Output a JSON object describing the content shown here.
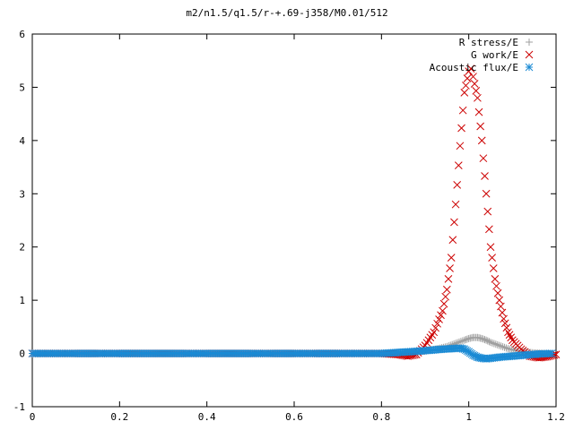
{
  "chart_data": {
    "type": "scatter",
    "title": "m2/n1.5/q1.5/r-+.69-j358/M0.01/512",
    "xlabel": "",
    "ylabel": "",
    "xlim": [
      0,
      1.2
    ],
    "ylim": [
      -1,
      6
    ],
    "x_ticks": [
      "0",
      "0.2",
      "0.4",
      "0.6",
      "0.8",
      "1",
      "1.2"
    ],
    "y_ticks": [
      "-1",
      "0",
      "1",
      "2",
      "3",
      "4",
      "5",
      "6"
    ],
    "grid": false,
    "legend_position": "top-right",
    "series": [
      {
        "name": "R stress/E",
        "marker": "plus",
        "color": "#a0a0a0",
        "x": [
          0.0,
          0.05,
          0.1,
          0.15,
          0.2,
          0.25,
          0.3,
          0.35,
          0.4,
          0.45,
          0.5,
          0.55,
          0.6,
          0.65,
          0.7,
          0.75,
          0.8,
          0.84,
          0.87,
          0.9,
          0.93,
          0.95,
          0.97,
          0.99,
          1.0,
          1.01,
          1.02,
          1.03,
          1.04,
          1.05,
          1.07,
          1.09,
          1.11,
          1.13,
          1.15,
          1.17,
          1.19
        ],
        "y": [
          0.0,
          0.0,
          0.0,
          0.0,
          0.0,
          0.0,
          0.0,
          0.0,
          0.0,
          0.0,
          0.0,
          0.0,
          0.0,
          0.0,
          0.0,
          0.0,
          0.0,
          0.01,
          0.02,
          0.05,
          0.09,
          0.13,
          0.19,
          0.25,
          0.28,
          0.3,
          0.3,
          0.28,
          0.25,
          0.21,
          0.15,
          0.09,
          0.05,
          0.03,
          0.01,
          0.0,
          0.0
        ]
      },
      {
        "name": "G work/E",
        "marker": "cross",
        "color": "#cc0000",
        "x": [
          0.0,
          0.05,
          0.1,
          0.15,
          0.2,
          0.25,
          0.3,
          0.35,
          0.4,
          0.45,
          0.5,
          0.55,
          0.6,
          0.65,
          0.7,
          0.75,
          0.8,
          0.84,
          0.86,
          0.88,
          0.9,
          0.92,
          0.94,
          0.95,
          0.96,
          0.97,
          0.98,
          0.99,
          1.0,
          1.005,
          1.01,
          1.02,
          1.03,
          1.04,
          1.05,
          1.06,
          1.07,
          1.08,
          1.09,
          1.1,
          1.12,
          1.14,
          1.16,
          1.18,
          1.2
        ],
        "y": [
          0.0,
          0.0,
          0.0,
          0.0,
          0.0,
          0.0,
          0.0,
          0.0,
          0.0,
          0.0,
          0.0,
          0.0,
          0.0,
          0.0,
          0.0,
          0.0,
          0.0,
          -0.02,
          -0.05,
          -0.02,
          0.15,
          0.4,
          0.8,
          1.2,
          1.8,
          2.8,
          3.9,
          4.9,
          5.3,
          5.35,
          5.2,
          4.8,
          4.0,
          3.0,
          2.0,
          1.4,
          1.0,
          0.65,
          0.4,
          0.25,
          0.08,
          -0.05,
          -0.08,
          -0.06,
          -0.02
        ]
      },
      {
        "name": "Acoustic flux/E",
        "marker": "star",
        "color": "#1a8ad4",
        "x": [
          0.0,
          0.05,
          0.1,
          0.15,
          0.2,
          0.25,
          0.3,
          0.35,
          0.4,
          0.45,
          0.5,
          0.55,
          0.6,
          0.65,
          0.7,
          0.75,
          0.8,
          0.84,
          0.88,
          0.91,
          0.94,
          0.96,
          0.98,
          0.99,
          1.0,
          1.01,
          1.02,
          1.03,
          1.04,
          1.05,
          1.07,
          1.1,
          1.13,
          1.16,
          1.19
        ],
        "y": [
          0.0,
          0.0,
          0.0,
          0.0,
          0.0,
          0.0,
          0.0,
          0.0,
          0.0,
          0.0,
          0.0,
          0.0,
          0.0,
          0.0,
          0.0,
          0.0,
          0.0,
          0.02,
          0.04,
          0.06,
          0.08,
          0.09,
          0.1,
          0.08,
          0.03,
          -0.03,
          -0.07,
          -0.09,
          -0.1,
          -0.09,
          -0.07,
          -0.05,
          -0.03,
          -0.01,
          0.0
        ]
      }
    ]
  }
}
